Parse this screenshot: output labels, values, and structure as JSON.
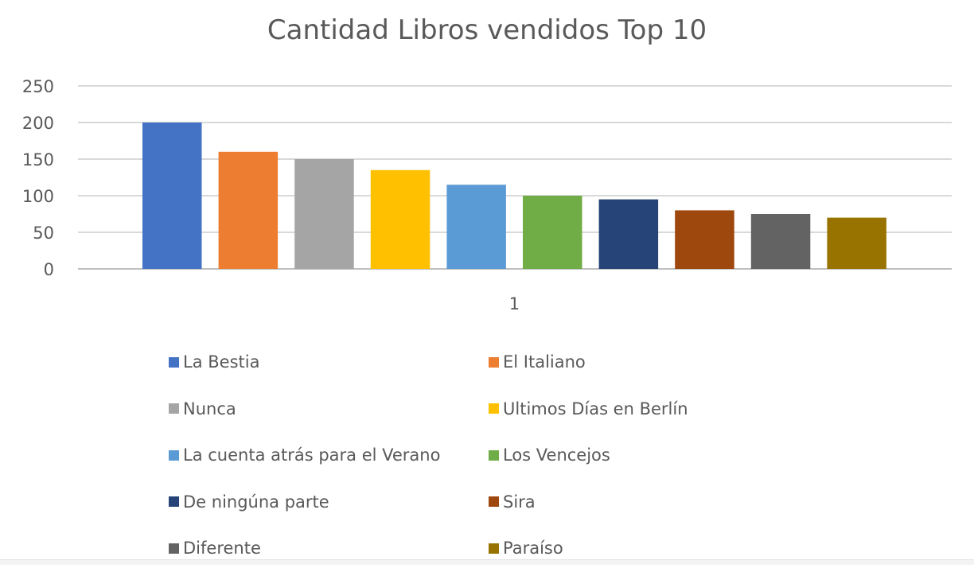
{
  "chart_data": {
    "type": "bar",
    "title": "Cantidad Libros vendidos Top 10",
    "categories": [
      "1"
    ],
    "ylim": [
      0,
      250
    ],
    "yticks": [
      0,
      50,
      100,
      150,
      200,
      250
    ],
    "grid": true,
    "legend_position": "bottom",
    "series": [
      {
        "name": "La Bestia",
        "values": [
          200
        ],
        "color": "#4472C4"
      },
      {
        "name": "El Italiano",
        "values": [
          160
        ],
        "color": "#ED7D31"
      },
      {
        "name": "Nunca",
        "values": [
          150
        ],
        "color": "#A5A5A5"
      },
      {
        "name": "Ultimos Días en Berlín",
        "values": [
          135
        ],
        "color": "#FFC000"
      },
      {
        "name": "La cuenta atrás para el Verano",
        "values": [
          115
        ],
        "color": "#5B9BD5"
      },
      {
        "name": "Los Vencejos",
        "values": [
          100
        ],
        "color": "#70AD47"
      },
      {
        "name": "De ningúna parte",
        "values": [
          95
        ],
        "color": "#264478"
      },
      {
        "name": "Sira",
        "values": [
          80
        ],
        "color": "#9E480E"
      },
      {
        "name": "Diferente",
        "values": [
          75
        ],
        "color": "#636363"
      },
      {
        "name": "Paraíso",
        "values": [
          70
        ],
        "color": "#997300"
      }
    ]
  }
}
